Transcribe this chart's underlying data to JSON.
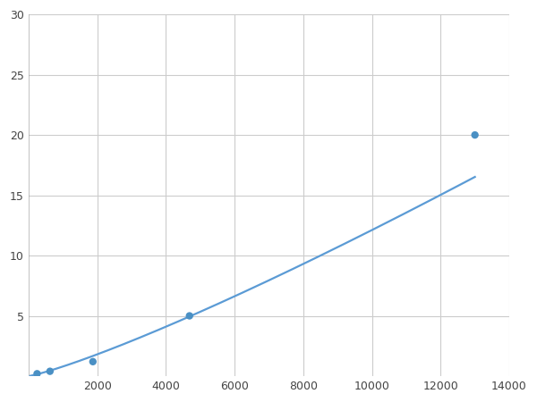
{
  "x_data": [
    250,
    625,
    1875,
    4688,
    13000
  ],
  "y_data": [
    0.2,
    0.4,
    1.2,
    5.0,
    20.0
  ],
  "line_color": "#5b9bd5",
  "marker_color": "#4a90c4",
  "marker_size": 6,
  "line_width": 1.6,
  "xlim": [
    0,
    14000
  ],
  "ylim": [
    0,
    30
  ],
  "xticks": [
    2000,
    4000,
    6000,
    8000,
    10000,
    12000,
    14000
  ],
  "yticks": [
    5,
    10,
    15,
    20,
    25,
    30
  ],
  "grid_color": "#cccccc",
  "bg_color": "#ffffff",
  "fig_bg_color": "#ffffff"
}
